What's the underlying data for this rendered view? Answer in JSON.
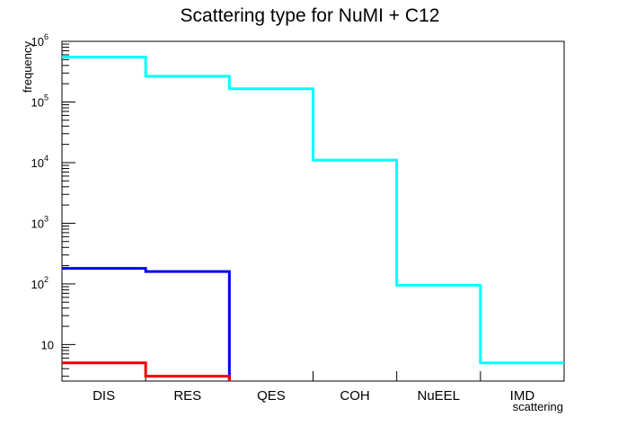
{
  "chart_data": {
    "type": "step-histogram",
    "title": "Scattering type for NuMI + C12",
    "xlabel": "scattering",
    "ylabel": "frequency",
    "y_scale": "log",
    "ylim": [
      2.5,
      1000000
    ],
    "categories": [
      "DIS",
      "RES",
      "QES",
      "COH",
      "NuEEL",
      "IMD"
    ],
    "y_ticks": [
      {
        "value": 10,
        "base": "10",
        "exp": ""
      },
      {
        "value": 100,
        "base": "10",
        "exp": "2"
      },
      {
        "value": 1000,
        "base": "10",
        "exp": "3"
      },
      {
        "value": 10000,
        "base": "10",
        "exp": "4"
      },
      {
        "value": 100000,
        "base": "10",
        "exp": "5"
      },
      {
        "value": 1000000,
        "base": "10",
        "exp": "6"
      }
    ],
    "series": [
      {
        "color": "#00ffff",
        "values": [
          550000,
          265000,
          165000,
          11000,
          95,
          5
        ]
      },
      {
        "color": "#0000ee",
        "values": [
          180,
          160,
          0,
          0,
          0,
          0
        ]
      },
      {
        "color": "#ee0000",
        "values": [
          5,
          3,
          0,
          0,
          0,
          0
        ]
      }
    ]
  }
}
